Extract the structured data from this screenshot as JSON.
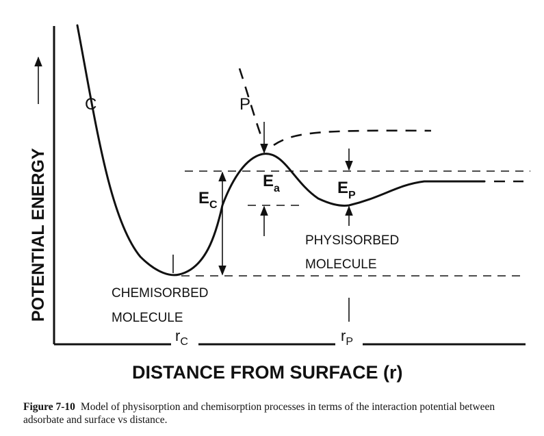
{
  "figure": {
    "y_axis_label": "POTENTIAL ENERGY",
    "x_axis_label": "DISTANCE FROM SURFACE (r)",
    "curve_c_label": "C",
    "curve_p_label": "P",
    "ec_label": {
      "main": "E",
      "sub": "C"
    },
    "ea_label": {
      "main": "E",
      "sub": "a"
    },
    "ep_label": {
      "main": "E",
      "sub": "P"
    },
    "chemisorbed_label": [
      "CHEMISORBED",
      "MOLECULE"
    ],
    "physisorbed_label": [
      "PHYSISORBED",
      "MOLECULE"
    ],
    "rc_label": {
      "main": "r",
      "sub": "C"
    },
    "rp_label": {
      "main": "r",
      "sub": "P"
    }
  },
  "caption": {
    "number": "Figure 7-10",
    "text": "Model of physisorption and chemisorption processes in terms of the interaction potential between adsorbate and surface vs distance."
  }
}
